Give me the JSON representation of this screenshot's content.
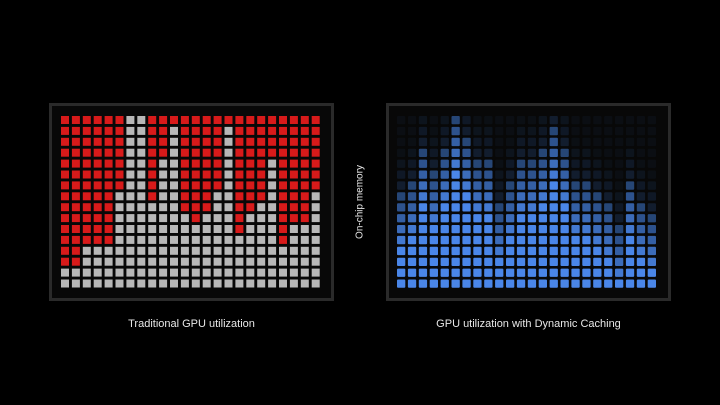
{
  "left_panel": {
    "caption": "Traditional GPU utilization",
    "colors": {
      "used": "#d81a1a",
      "free": "#b8b8b8"
    }
  },
  "right_panel": {
    "caption": "GPU utilization with Dynamic Caching",
    "axis_label": "On-chip memory",
    "colors": {
      "bright": "#4a86e8",
      "dim": "#1a3050"
    }
  }
}
